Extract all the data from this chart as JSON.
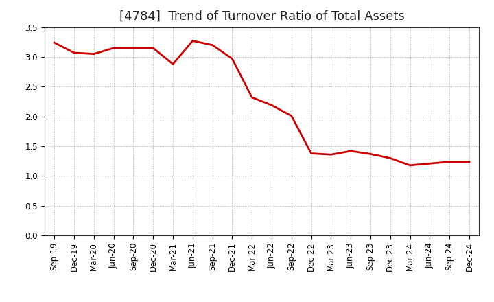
{
  "title": "[4784]  Trend of Turnover Ratio of Total Assets",
  "x_labels": [
    "Sep-19",
    "Dec-19",
    "Mar-20",
    "Jun-20",
    "Sep-20",
    "Dec-20",
    "Mar-21",
    "Jun-21",
    "Sep-21",
    "Dec-21",
    "Mar-22",
    "Jun-22",
    "Sep-22",
    "Dec-22",
    "Mar-23",
    "Jun-23",
    "Sep-23",
    "Dec-23",
    "Mar-24",
    "Jun-24",
    "Sep-24",
    "Dec-24"
  ],
  "y_values": [
    3.24,
    3.07,
    3.05,
    3.15,
    3.15,
    3.15,
    2.88,
    3.27,
    3.2,
    2.97,
    2.32,
    2.19,
    2.01,
    1.38,
    1.36,
    1.42,
    1.37,
    1.3,
    1.18,
    1.21,
    1.24,
    1.24
  ],
  "line_color": "#cc0000",
  "line_width": 2.0,
  "ylim": [
    0.0,
    3.5
  ],
  "yticks": [
    0.0,
    0.5,
    1.0,
    1.5,
    2.0,
    2.5,
    3.0,
    3.5
  ],
  "grid_color": "#aaaaaa",
  "grid_style": "dotted",
  "background_color": "#ffffff",
  "title_fontsize": 13,
  "tick_fontsize": 8.5,
  "spine_color": "#333333"
}
